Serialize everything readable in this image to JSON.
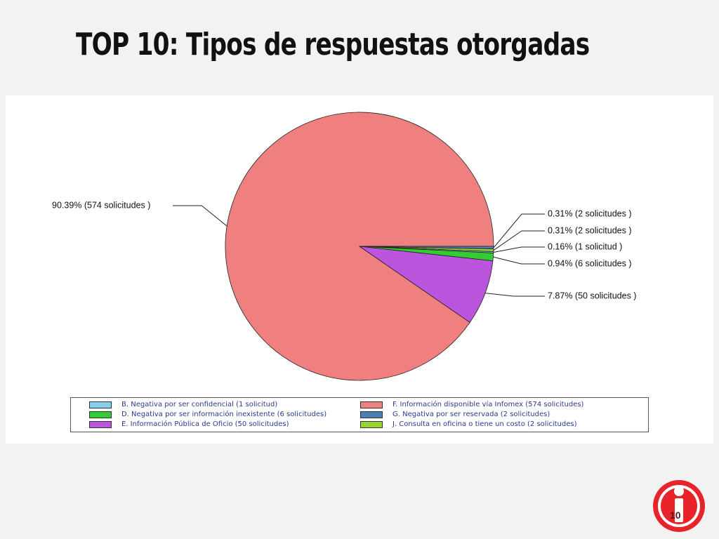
{
  "slide": {
    "title": "TOP 10:  Tipos de respuestas otorgadas",
    "page_number": "10"
  },
  "chart_data": {
    "type": "pie",
    "title": "",
    "slices": [
      {
        "label": "F. Información disponible vía Infomex (574  solicitudes)",
        "value": 574,
        "percent": 90.39,
        "data_label": "90.39%  (574  solicitudes )",
        "color": "#f08080"
      },
      {
        "label": "G. Negativa por ser reservada (2  solicitudes)",
        "value": 2,
        "percent": 0.31,
        "data_label": "0.31%  (2  solicitudes )",
        "color": "#4a7fb5"
      },
      {
        "label": "J. Consulta en oficina o tiene un costo (2  solicitudes)",
        "value": 2,
        "percent": 0.31,
        "data_label": "0.31%  (2  solicitudes )",
        "color": "#99d22c"
      },
      {
        "label": "B. Negativa por ser confidencial (1  solicitud)",
        "value": 1,
        "percent": 0.16,
        "data_label": "0.16%  (1  solicitud )",
        "color": "#87ceeb"
      },
      {
        "label": "D. Negativa por ser información inexistente (6  solicitudes)",
        "value": 6,
        "percent": 0.94,
        "data_label": "0.94%  (6  solicitudes )",
        "color": "#33cc33"
      },
      {
        "label": "E. Información Pública de Oficio (50  solicitudes)",
        "value": 50,
        "percent": 7.87,
        "data_label": "7.87%  (50  solicitudes )",
        "color": "#bb55dd"
      }
    ],
    "legend": {
      "placement": "bottom",
      "items": [
        {
          "label": "B. Negativa por ser confidencial (1  solicitud)",
          "color": "#87ceeb"
        },
        {
          "label": "F. Información disponible vía Infomex (574  solicitudes)",
          "color": "#f08080"
        },
        {
          "label": "D. Negativa por ser información inexistente (6  solicitudes)",
          "color": "#33cc33"
        },
        {
          "label": "G. Negativa por ser reservada (2  solicitudes)",
          "color": "#4a7fb5"
        },
        {
          "label": "E. Información Pública de Oficio (50  solicitudes)",
          "color": "#bb55dd"
        },
        {
          "label": "J. Consulta en oficina o tiene un costo (2  solicitudes)",
          "color": "#99d22c"
        }
      ]
    }
  },
  "colors": {
    "logo_red": "#e8232a",
    "background": "#f2f2f2"
  }
}
